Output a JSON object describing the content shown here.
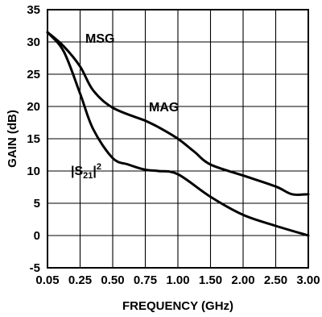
{
  "chart_data": {
    "type": "line",
    "title": "",
    "xlabel": "FREQUENCY (GHz)",
    "ylabel": "GAIN (dB)",
    "x_tick_labels": [
      "0.05",
      "0.25",
      "0.50",
      "0.75",
      "1.00",
      "1.50",
      "2.00",
      "2.50",
      "3.00"
    ],
    "y_ticks": [
      -5,
      0,
      5,
      10,
      15,
      20,
      25,
      30,
      35
    ],
    "ylim": [
      -5,
      35
    ],
    "grid": true,
    "series": [
      {
        "name": "MSG",
        "x": [
          "0.05",
          "0.15",
          "0.25",
          "0.35",
          "0.50",
          "0.75"
        ],
        "y": [
          31.5,
          29.3,
          26.2,
          22.5,
          19.8,
          17.8
        ]
      },
      {
        "name": "MAG",
        "x": [
          "0.75",
          "0.85",
          "1.00",
          "1.25",
          "1.50",
          "2.00",
          "2.50",
          "2.75",
          "3.00"
        ],
        "y": [
          17.8,
          16.8,
          15.0,
          13.0,
          11.0,
          9.3,
          7.6,
          6.4,
          6.4
        ]
      },
      {
        "name": "|S21|²",
        "x": [
          "0.05",
          "0.15",
          "0.25",
          "0.35",
          "0.50",
          "0.62",
          "0.75",
          "0.85",
          "1.00",
          "1.50",
          "2.00",
          "2.50",
          "3.00"
        ],
        "y": [
          31.5,
          28.5,
          22.0,
          16.5,
          12.0,
          11.0,
          10.2,
          10.0,
          9.5,
          6.0,
          3.2,
          1.5,
          0.0
        ]
      }
    ],
    "annotations": {
      "msg": "MSG",
      "mag": "MAG",
      "s21_base": "|S",
      "s21_sub": "21",
      "s21_tail": "|",
      "s21_sup": "2"
    }
  }
}
